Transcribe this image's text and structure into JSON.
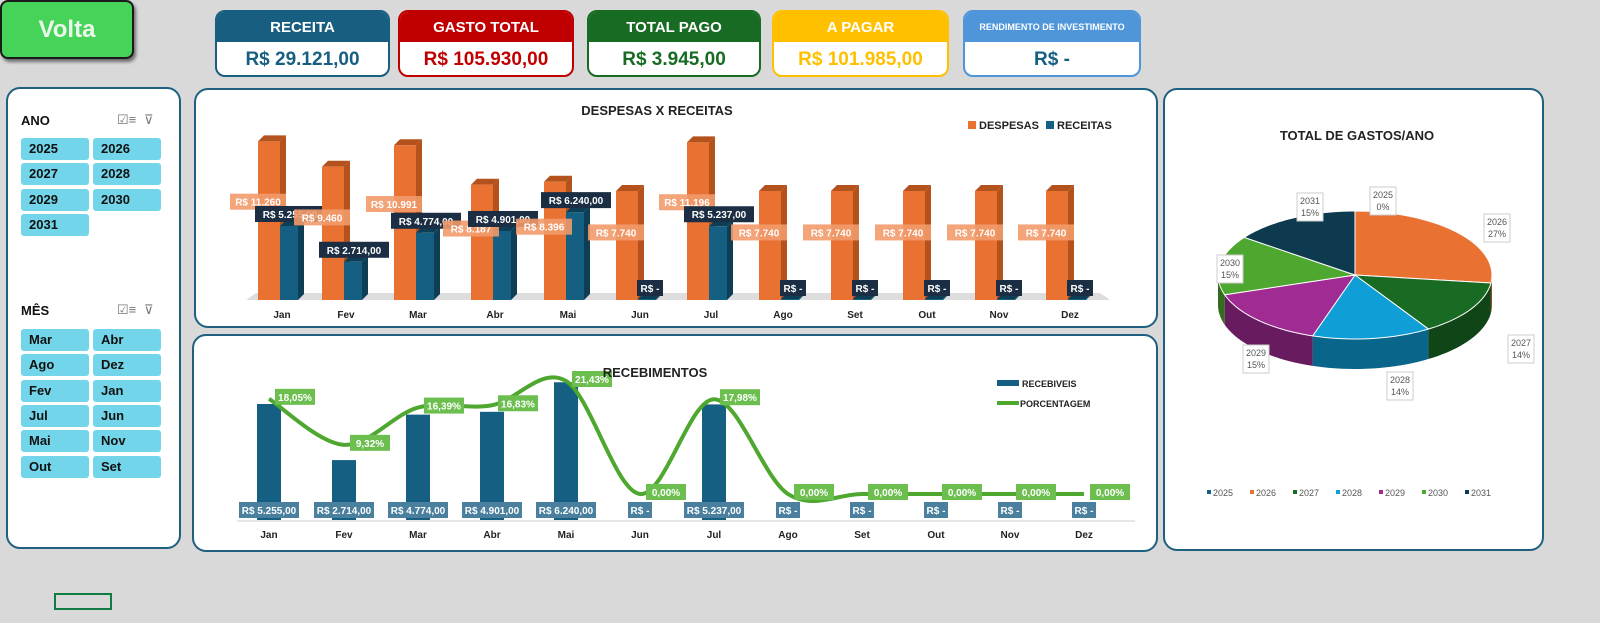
{
  "volta_label": "Volta",
  "cards": [
    {
      "title": "RECEITA",
      "value": "R$ 29.121,00",
      "color": "#175e80",
      "text_color": "#175e80"
    },
    {
      "title": "GASTO TOTAL",
      "value": "R$ 105.930,00",
      "color": "#c00000",
      "text_color": "#c00000"
    },
    {
      "title": "TOTAL PAGO",
      "value": "R$ 3.945,00",
      "color": "#176b22",
      "text_color": "#176b22"
    },
    {
      "title": "A PAGAR",
      "value": "R$ 101.985,00",
      "color": "#ffc000",
      "text_color": "#ffc000"
    },
    {
      "title": "RENDIMENTO DE INVESTIMENTO",
      "value": "R$ -",
      "color": "#4e95d9",
      "text_color": "#175e80"
    }
  ],
  "slicers": {
    "ano": {
      "title": "ANO",
      "items": [
        "2025",
        "2026",
        "2027",
        "2028",
        "2029",
        "2030",
        "2031"
      ]
    },
    "mes": {
      "title": "MÊS",
      "items": [
        "Mar",
        "Abr",
        "Ago",
        "Dez",
        "Fev",
        "Jan",
        "Jul",
        "Jun",
        "Mai",
        "Nov",
        "Out",
        "Set"
      ]
    },
    "icons": [
      "multi-select-icon",
      "clear-filter-icon"
    ]
  },
  "chart_data": [
    {
      "type": "bar",
      "title": "DESPESAS X RECEITAS",
      "categories": [
        "Jan",
        "Fev",
        "Mar",
        "Abr",
        "Mai",
        "Jun",
        "Jul",
        "Ago",
        "Set",
        "Out",
        "Nov",
        "Dez"
      ],
      "series": [
        {
          "name": "DESPESAS",
          "color": "#e97132",
          "values": [
            11260,
            9460,
            10991,
            8187,
            8396,
            7740,
            11196,
            7740,
            7740,
            7740,
            7740,
            7740
          ],
          "labels": [
            "R$ 11.260",
            "R$ 9.460",
            "R$ 10.991",
            "R$ 8.187",
            "R$ 8.396",
            "R$ 7.740",
            "R$ 11.196",
            "R$ 7.740",
            "R$ 7.740",
            "R$ 7.740",
            "R$ 7.740",
            "R$ 7.740"
          ]
        },
        {
          "name": "RECEITAS",
          "color": "#156082",
          "values": [
            5255,
            2714,
            4774,
            4901,
            6240,
            0,
            5237,
            0,
            0,
            0,
            0,
            0
          ],
          "labels": [
            "R$ 5.255,00",
            "R$ 2.714,00",
            "R$ 4.774,00",
            "R$ 4.901,00",
            "R$ 6.240,00",
            "R$ -",
            "R$ 5.237,00",
            "R$ -",
            "R$ -",
            "R$ -",
            "R$ -",
            "R$ -"
          ]
        }
      ],
      "legend": "top-right",
      "grid": false
    },
    {
      "type": "bar+line",
      "title": "RECEBIMENTOS",
      "categories": [
        "Jan",
        "Fev",
        "Mar",
        "Abr",
        "Mai",
        "Jun",
        "Jul",
        "Ago",
        "Set",
        "Out",
        "Nov",
        "Dez"
      ],
      "series": [
        {
          "name": "RECEBIVEIS",
          "type": "bar",
          "color": "#156082",
          "values": [
            5255,
            2714,
            4774,
            4901,
            6240,
            0,
            5237,
            0,
            0,
            0,
            0,
            0
          ],
          "labels": [
            "R$ 5.255,00",
            "R$ 2.714,00",
            "R$ 4.774,00",
            "R$ 4.901,00",
            "R$ 6.240,00",
            "R$ -",
            "R$ 5.237,00",
            "R$ -",
            "R$ -",
            "R$ -",
            "R$ -",
            "R$ -"
          ]
        },
        {
          "name": "PORCENTAGEM",
          "type": "line",
          "color": "#4ea72e",
          "values": [
            18.05,
            9.32,
            16.39,
            16.83,
            21.43,
            0,
            17.98,
            0,
            0,
            0,
            0,
            0
          ],
          "labels": [
            "18,05%",
            "9,32%",
            "16,39%",
            "16,83%",
            "21,43%",
            "0,00%",
            "17,98%",
            "0,00%",
            "0,00%",
            "0,00%",
            "0,00%",
            "0,00%"
          ]
        }
      ],
      "legend": "top-right",
      "grid": false
    },
    {
      "type": "pie",
      "title": "TOTAL DE GASTOS/ANO",
      "categories": [
        "2025",
        "2026",
        "2027",
        "2028",
        "2029",
        "2030",
        "2031"
      ],
      "values": [
        0,
        27,
        14,
        14,
        15,
        15,
        15
      ],
      "labels": [
        "0%",
        "27%",
        "14%",
        "14%",
        "15%",
        "15%",
        "15%"
      ],
      "colors": [
        "#156082",
        "#e97132",
        "#196b24",
        "#0f9ed5",
        "#a02b93",
        "#4ea72e",
        "#0e3a50"
      ],
      "legend": "bottom"
    }
  ]
}
